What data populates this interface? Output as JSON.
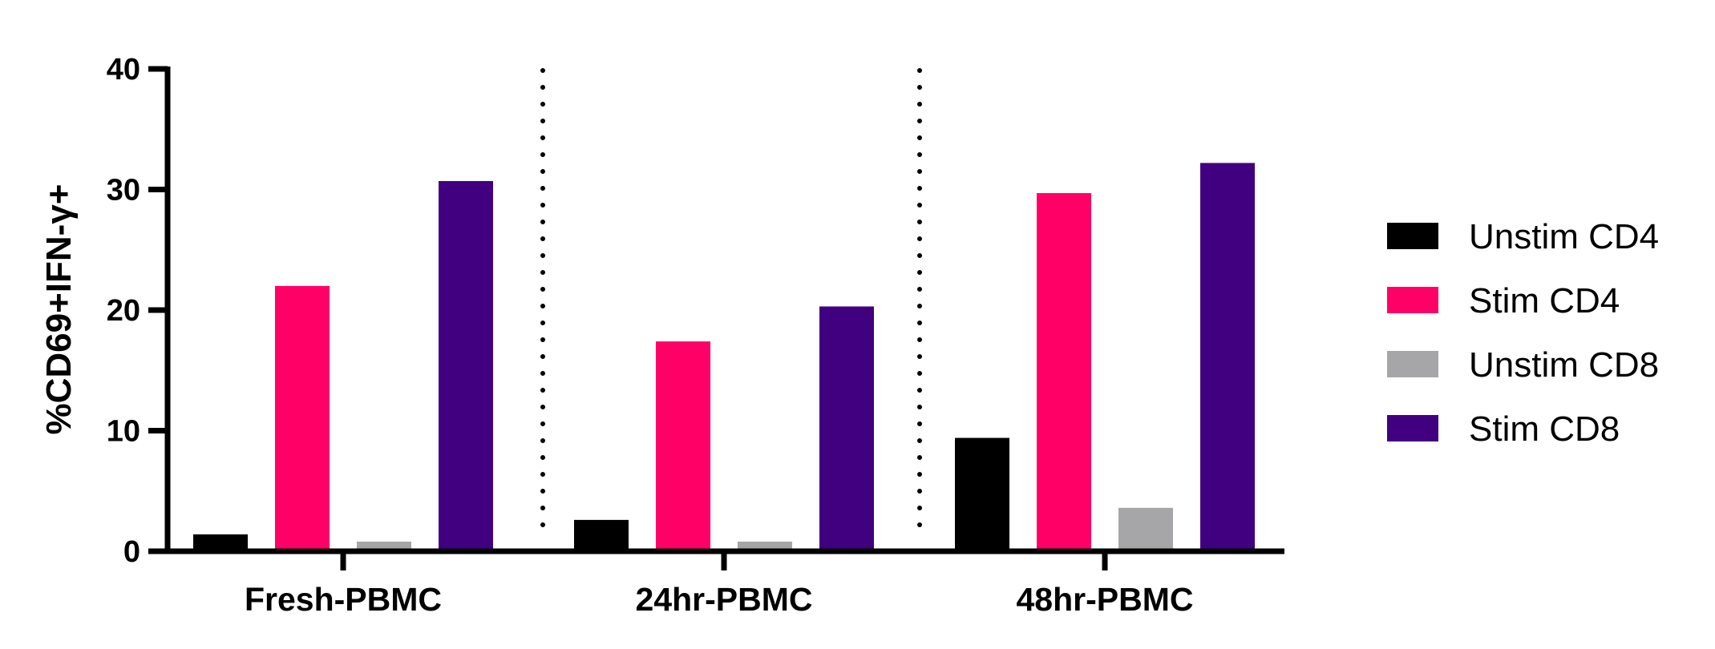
{
  "chart_data": {
    "type": "bar",
    "categories": [
      "Fresh-PBMC",
      "24hr-PBMC",
      "48hr-PBMC"
    ],
    "series": [
      {
        "name": "Unstim CD4",
        "color": "#000000",
        "values": [
          1.4,
          2.6,
          9.4
        ]
      },
      {
        "name": "Stim CD4",
        "color": "#ff0066",
        "values": [
          22.0,
          17.4,
          29.7
        ]
      },
      {
        "name": "Unstim CD8",
        "color": "#a6a6a8",
        "values": [
          0.8,
          0.8,
          3.6
        ]
      },
      {
        "name": "Stim CD8",
        "color": "#400080",
        "values": [
          30.7,
          20.3,
          32.2
        ]
      }
    ],
    "ylabel": "%CD69+IFN-γ+",
    "ylim": [
      0,
      40
    ],
    "yticks": [
      0,
      10,
      20,
      30,
      40
    ],
    "grid": false,
    "group_separators": "dotted",
    "legend": "right"
  }
}
